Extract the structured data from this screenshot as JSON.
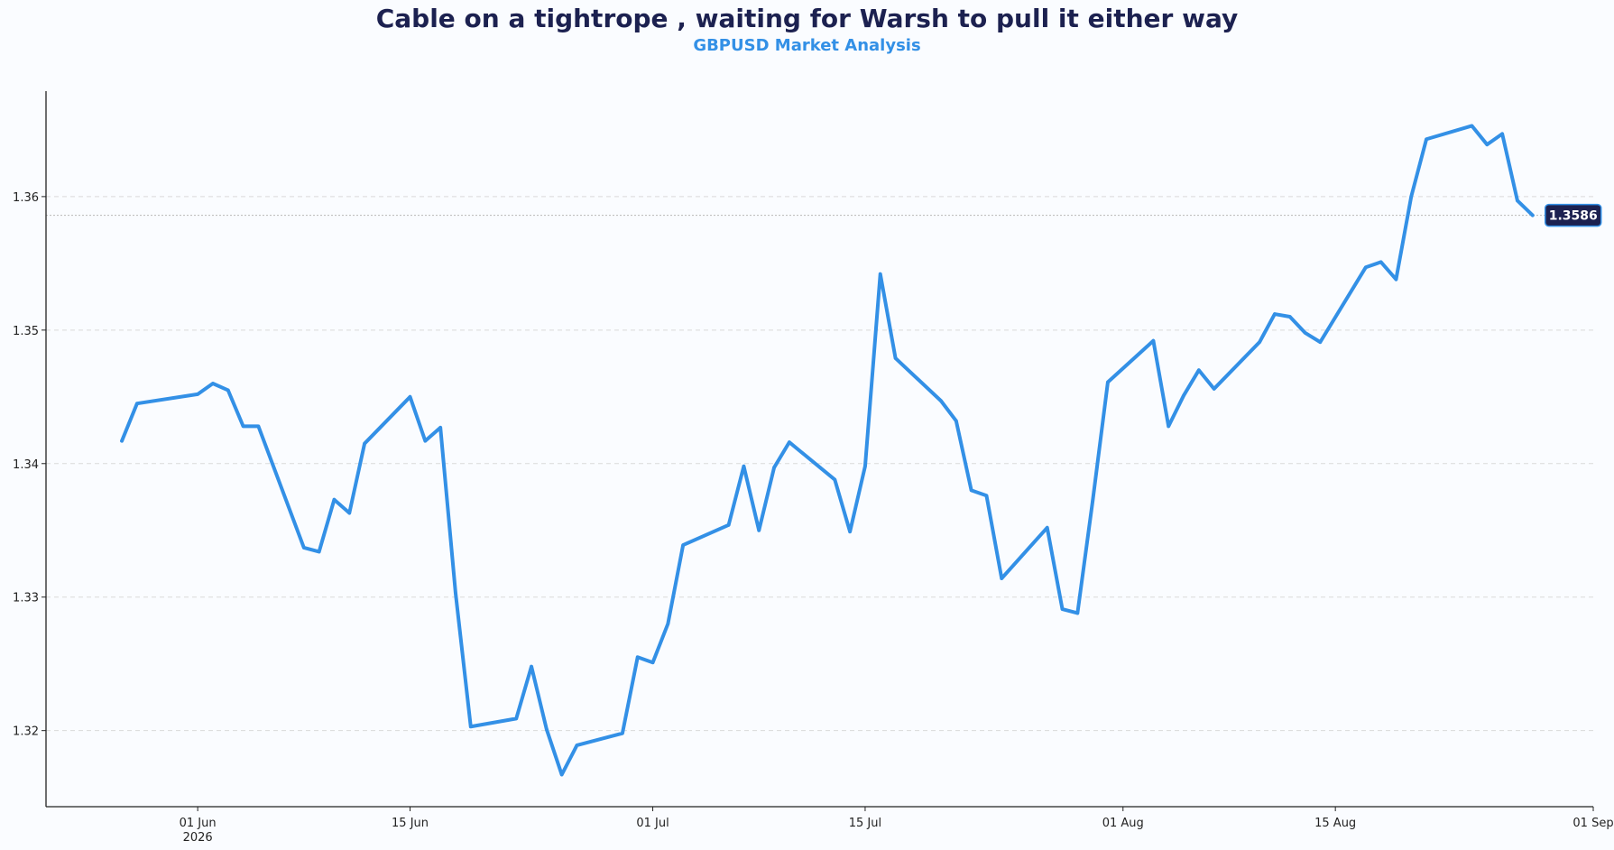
{
  "chart_data": {
    "type": "line",
    "title": "Cable on a tightrope , waiting for Warsh to pull it either way",
    "subtitle": "GBPUSD Market Analysis",
    "xlabel": "",
    "ylabel": "",
    "x_range": [
      "2026-05-22",
      "2026-09-01"
    ],
    "ylim": [
      1.3143,
      1.3679
    ],
    "grid": "horizontal dashed",
    "x_ticks": [
      {
        "date": "2026-06-01",
        "label": "01 Jun",
        "sublabel": "2026"
      },
      {
        "date": "2026-06-15",
        "label": "15 Jun",
        "sublabel": ""
      },
      {
        "date": "2026-07-01",
        "label": "01 Jul",
        "sublabel": ""
      },
      {
        "date": "2026-07-15",
        "label": "15 Jul",
        "sublabel": ""
      },
      {
        "date": "2026-08-01",
        "label": "01 Aug",
        "sublabel": ""
      },
      {
        "date": "2026-08-15",
        "label": "15 Aug",
        "sublabel": ""
      },
      {
        "date": "2026-09-01",
        "label": "01 Sep",
        "sublabel": ""
      }
    ],
    "y_ticks": [
      {
        "value": 1.32,
        "label": "1.32"
      },
      {
        "value": 1.33,
        "label": "1.33"
      },
      {
        "value": 1.34,
        "label": "1.34"
      },
      {
        "value": 1.35,
        "label": "1.35"
      },
      {
        "value": 1.36,
        "label": "1.36"
      }
    ],
    "series": [
      {
        "color": "#3390e6",
        "points": [
          [
            "2026-05-27",
            1.3417
          ],
          [
            "2026-05-28",
            1.3445
          ],
          [
            "2026-06-01",
            1.3452
          ],
          [
            "2026-06-02",
            1.346
          ],
          [
            "2026-06-03",
            1.3455
          ],
          [
            "2026-06-04",
            1.3428
          ],
          [
            "2026-06-05",
            1.3428
          ],
          [
            "2026-06-08",
            1.3337
          ],
          [
            "2026-06-09",
            1.3334
          ],
          [
            "2026-06-10",
            1.3373
          ],
          [
            "2026-06-11",
            1.3363
          ],
          [
            "2026-06-12",
            1.3415
          ],
          [
            "2026-06-15",
            1.345
          ],
          [
            "2026-06-16",
            1.3417
          ],
          [
            "2026-06-17",
            1.3427
          ],
          [
            "2026-06-18",
            1.3303
          ],
          [
            "2026-06-19",
            1.3203
          ],
          [
            "2026-06-22",
            1.3209
          ],
          [
            "2026-06-23",
            1.3248
          ],
          [
            "2026-06-24",
            1.3201
          ],
          [
            "2026-06-25",
            1.3167
          ],
          [
            "2026-06-26",
            1.3189
          ],
          [
            "2026-06-29",
            1.3198
          ],
          [
            "2026-06-30",
            1.3255
          ],
          [
            "2026-07-01",
            1.3251
          ],
          [
            "2026-07-02",
            1.328
          ],
          [
            "2026-07-03",
            1.3339
          ],
          [
            "2026-07-06",
            1.3354
          ],
          [
            "2026-07-07",
            1.3398
          ],
          [
            "2026-07-08",
            1.335
          ],
          [
            "2026-07-09",
            1.3397
          ],
          [
            "2026-07-10",
            1.3416
          ],
          [
            "2026-07-13",
            1.3388
          ],
          [
            "2026-07-14",
            1.3349
          ],
          [
            "2026-07-15",
            1.3398
          ],
          [
            "2026-07-16",
            1.3542
          ],
          [
            "2026-07-17",
            1.3479
          ],
          [
            "2026-07-20",
            1.3447
          ],
          [
            "2026-07-21",
            1.3432
          ],
          [
            "2026-07-22",
            1.338
          ],
          [
            "2026-07-23",
            1.3376
          ],
          [
            "2026-07-24",
            1.3314
          ],
          [
            "2026-07-27",
            1.3352
          ],
          [
            "2026-07-28",
            1.3291
          ],
          [
            "2026-07-29",
            1.3288
          ],
          [
            "2026-07-30",
            1.3372
          ],
          [
            "2026-07-31",
            1.3461
          ],
          [
            "2026-08-03",
            1.3492
          ],
          [
            "2026-08-04",
            1.3428
          ],
          [
            "2026-08-05",
            1.3451
          ],
          [
            "2026-08-06",
            1.347
          ],
          [
            "2026-08-07",
            1.3456
          ],
          [
            "2026-08-10",
            1.3491
          ],
          [
            "2026-08-11",
            1.3512
          ],
          [
            "2026-08-12",
            1.351
          ],
          [
            "2026-08-13",
            1.3498
          ],
          [
            "2026-08-14",
            1.3491
          ],
          [
            "2026-08-17",
            1.3547
          ],
          [
            "2026-08-18",
            1.3551
          ],
          [
            "2026-08-19",
            1.3538
          ],
          [
            "2026-08-20",
            1.36
          ],
          [
            "2026-08-21",
            1.3643
          ],
          [
            "2026-08-24",
            1.3653
          ],
          [
            "2026-08-25",
            1.3639
          ],
          [
            "2026-08-26",
            1.3647
          ],
          [
            "2026-08-27",
            1.3597
          ],
          [
            "2026-08-28",
            1.3586
          ]
        ]
      }
    ],
    "last_value": 1.3586,
    "last_value_label": "1.3586",
    "colors": {
      "line": "#3390e6",
      "title": "#1c2150",
      "subtitle": "#3390e6",
      "label_bg": "#1c2150",
      "grid": "#d9d9d9",
      "background": "#fafcff"
    }
  }
}
